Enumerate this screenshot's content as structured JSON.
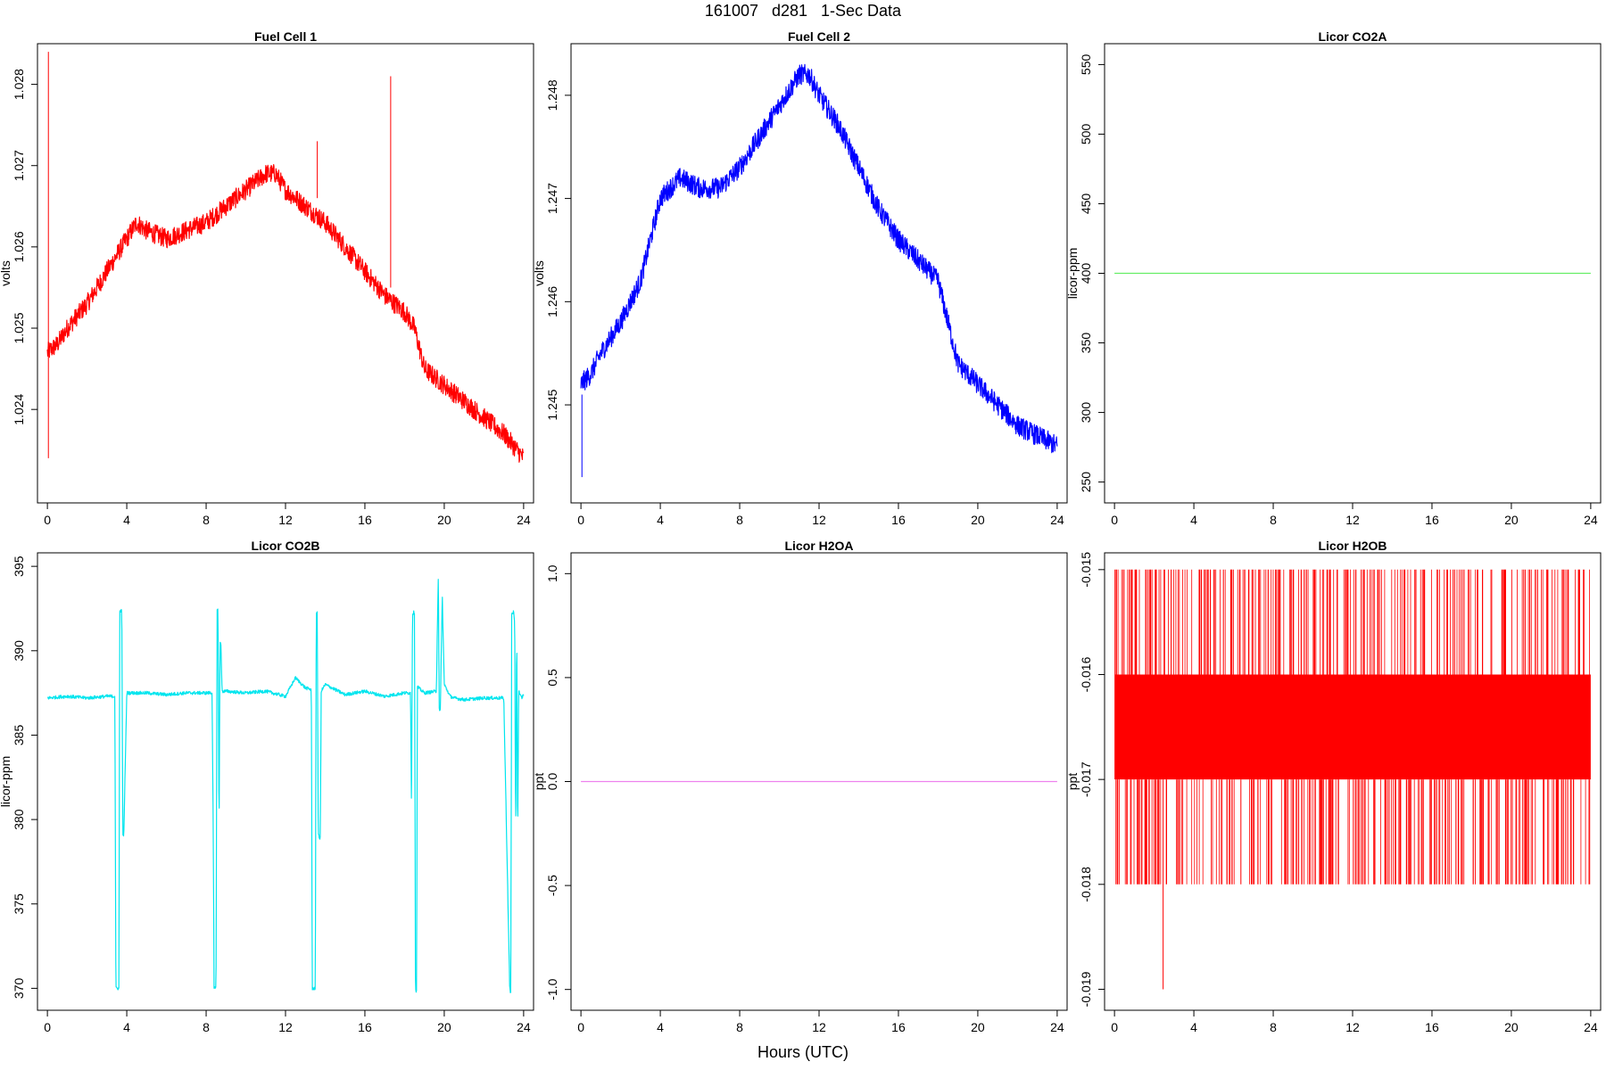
{
  "figure": {
    "title": "161007   d281   1-Sec Data",
    "xlabel": "Hours (UTC)"
  },
  "chart_data": [
    {
      "type": "line",
      "title": "Fuel Cell 1",
      "ylabel": "volts",
      "color": "#ff0000",
      "xlim": [
        -0.5,
        24.5
      ],
      "ylim": [
        1.02285,
        1.0285
      ],
      "xticks": [
        0,
        4,
        8,
        12,
        16,
        20,
        24
      ],
      "yticks": [
        1.024,
        1.025,
        1.026,
        1.027,
        1.028
      ],
      "ytick_labels": [
        "1.024",
        "1.025",
        "1.026",
        "1.027",
        "1.028"
      ],
      "noise": 0.00012,
      "series": [
        {
          "x": [
            0,
            0.5,
            1,
            2,
            3,
            4,
            4.5,
            5,
            6,
            7,
            8,
            9,
            10,
            11,
            11.5,
            12,
            13,
            14,
            15,
            16,
            17,
            18,
            18.5,
            19,
            20,
            21,
            22,
            23,
            24
          ],
          "y": [
            1.0247,
            1.0248,
            1.025,
            1.0253,
            1.0257,
            1.0261,
            1.0263,
            1.0262,
            1.0261,
            1.0262,
            1.0263,
            1.0265,
            1.0267,
            1.0269,
            1.0269,
            1.0267,
            1.0265,
            1.0263,
            1.026,
            1.0257,
            1.0254,
            1.0252,
            1.025,
            1.0245,
            1.0243,
            1.0241,
            1.0239,
            1.0237,
            1.0234
          ]
        }
      ],
      "spikes": [
        {
          "x": 0.05,
          "y0": 1.0234,
          "y1": 1.0284
        },
        {
          "x": 17.3,
          "y0": 1.0255,
          "y1": 1.0281
        },
        {
          "x": 13.6,
          "y0": 1.0266,
          "y1": 1.0273
        }
      ]
    },
    {
      "type": "line",
      "title": "Fuel Cell 2",
      "ylabel": "volts",
      "color": "#0000ff",
      "xlim": [
        -0.5,
        24.5
      ],
      "ylim": [
        1.24405,
        1.2485
      ],
      "xticks": [
        0,
        4,
        8,
        12,
        16,
        20,
        24
      ],
      "yticks": [
        1.245,
        1.246,
        1.247,
        1.248
      ],
      "ytick_labels": [
        "1.245",
        "1.246",
        "1.247",
        "1.248"
      ],
      "noise": 0.0001,
      "series": [
        {
          "x": [
            0,
            0.5,
            1,
            2,
            3,
            3.5,
            4,
            5,
            6,
            7,
            8,
            9,
            10,
            11,
            11.5,
            12,
            13,
            14,
            15,
            16,
            17,
            18,
            18.5,
            19,
            20,
            21,
            22,
            23,
            24
          ],
          "y": [
            1.2452,
            1.2453,
            1.2455,
            1.2458,
            1.2462,
            1.2466,
            1.247,
            1.2472,
            1.2471,
            1.2471,
            1.2473,
            1.2476,
            1.2479,
            1.2482,
            1.2482,
            1.248,
            1.2477,
            1.2473,
            1.2469,
            1.2466,
            1.2464,
            1.2462,
            1.2458,
            1.2454,
            1.2452,
            1.245,
            1.2448,
            1.2447,
            1.2446
          ]
        }
      ],
      "spikes": [
        {
          "x": 0.05,
          "y0": 1.2443,
          "y1": 1.2451
        }
      ]
    },
    {
      "type": "line",
      "title": "Licor CO2A",
      "ylabel": "licor-ppm",
      "color": "#66ee66",
      "xlim": [
        -0.5,
        24.5
      ],
      "ylim": [
        235,
        565
      ],
      "xticks": [
        0,
        4,
        8,
        12,
        16,
        20,
        24
      ],
      "yticks": [
        250,
        300,
        350,
        400,
        450,
        500,
        550
      ],
      "ytick_labels": [
        "250",
        "300",
        "350",
        "400",
        "450",
        "500",
        "550"
      ],
      "noise": 0,
      "series": [
        {
          "x": [
            0,
            24
          ],
          "y": [
            400,
            400
          ]
        }
      ]
    },
    {
      "type": "line",
      "title": "Licor CO2B",
      "ylabel": "licor-ppm",
      "color": "#00e5ee",
      "xlim": [
        -0.5,
        24.5
      ],
      "ylim": [
        368.7,
        395.8
      ],
      "xticks": [
        0,
        4,
        8,
        12,
        16,
        20,
        24
      ],
      "yticks": [
        370,
        375,
        380,
        385,
        390,
        395
      ],
      "ytick_labels": [
        "370",
        "375",
        "380",
        "385",
        "390",
        "395"
      ],
      "noise": 0.1,
      "series": [
        {
          "x": [
            0,
            1,
            2,
            3,
            3.4,
            3.45,
            3.5,
            3.6,
            3.65,
            3.7,
            3.75,
            3.8,
            3.85,
            4,
            5,
            6,
            7,
            8,
            8.3,
            8.35,
            8.4,
            8.5,
            8.55,
            8.6,
            8.65,
            8.7,
            8.75,
            8.8,
            9,
            10,
            11,
            12,
            12.5,
            13,
            13.3,
            13.35,
            13.4,
            13.5,
            13.55,
            13.6,
            13.65,
            13.7,
            13.75,
            13.8,
            14,
            15,
            16,
            17,
            18,
            18.3,
            18.35,
            18.4,
            18.5,
            18.55,
            18.6,
            18.65,
            18.7,
            19,
            19.6,
            19.7,
            19.75,
            19.8,
            19.9,
            20,
            20.3,
            20.5,
            21,
            22,
            23,
            23.3,
            23.35,
            23.4,
            23.5,
            23.55,
            23.6,
            23.65,
            23.7,
            23.75,
            23.8,
            23.9,
            24
          ],
          "y": [
            387.2,
            387.3,
            387.2,
            387.3,
            387.3,
            370.0,
            370.0,
            370.0,
            392.3,
            392.4,
            392.3,
            379.0,
            379.0,
            387.5,
            387.5,
            387.4,
            387.5,
            387.5,
            387.5,
            380.5,
            370.0,
            370.0,
            392.4,
            392.4,
            379.0,
            390.5,
            390.4,
            387.6,
            387.6,
            387.5,
            387.6,
            387.3,
            388.4,
            387.8,
            387.7,
            370.0,
            370.0,
            370.0,
            392.3,
            392.3,
            379.2,
            378.9,
            378.9,
            387.6,
            388.0,
            387.4,
            387.6,
            387.3,
            387.5,
            387.5,
            380.3,
            392.2,
            392.3,
            370.0,
            369.8,
            387.9,
            387.8,
            387.5,
            387.6,
            394.5,
            386.3,
            386.5,
            393.3,
            388.0,
            387.3,
            387.2,
            387.1,
            387.2,
            387.2,
            370.0,
            369.7,
            392.2,
            392.3,
            391.5,
            378.8,
            391.8,
            378.6,
            387.8,
            387.4,
            387.2,
            387.4
          ]
        }
      ]
    },
    {
      "type": "line",
      "title": "Licor H2OA",
      "ylabel": "ppt",
      "color": "#ee82ee",
      "xlim": [
        -0.5,
        24.5
      ],
      "ylim": [
        -1.1,
        1.1
      ],
      "xticks": [
        0,
        4,
        8,
        12,
        16,
        20,
        24
      ],
      "yticks": [
        -1.0,
        -0.5,
        0.0,
        0.5,
        1.0
      ],
      "ytick_labels": [
        "-1.0",
        "-0.5",
        "0.0",
        "0.5",
        "1.0"
      ],
      "noise": 0,
      "series": [
        {
          "x": [
            0,
            24
          ],
          "y": [
            0,
            0
          ]
        }
      ]
    },
    {
      "type": "line",
      "title": "Licor H2OB",
      "ylabel": "ppt",
      "color": "#ff0000",
      "xlim": [
        -0.5,
        24.5
      ],
      "ylim": [
        -0.0192,
        -0.01484
      ],
      "xticks": [
        0,
        4,
        8,
        12,
        16,
        20,
        24
      ],
      "yticks": [
        -0.019,
        -0.018,
        -0.017,
        -0.016,
        -0.015
      ],
      "ytick_labels": [
        "-0.019",
        "-0.018",
        "-0.017",
        "-0.016",
        "-0.015"
      ],
      "noise": 0,
      "series": [
        {
          "x": [
            0,
            24
          ],
          "y": [
            -0.016,
            -0.017
          ],
          "band": true
        }
      ],
      "spike_high": -0.015,
      "spike_low": -0.018,
      "deep_spike": {
        "x": 2.45,
        "y": -0.019
      }
    }
  ]
}
